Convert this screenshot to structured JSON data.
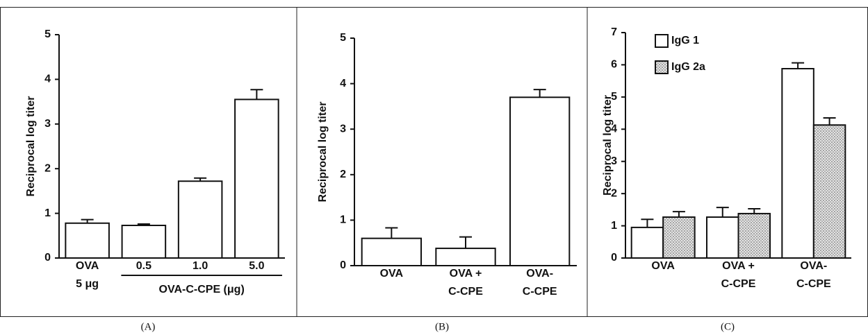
{
  "chart_data": [
    {
      "type": "bar",
      "panel_label": "(A)",
      "ylabel": "Reciprocal log titer",
      "categories": [
        [
          "OVA",
          "5 μg"
        ],
        [
          "0.5"
        ],
        [
          "1.0"
        ],
        [
          "5.0"
        ]
      ],
      "group_label": "OVA-C-CPE (μg)",
      "values": [
        0.78,
        0.73,
        1.72,
        3.55
      ],
      "errors": [
        0.08,
        0.03,
        0.07,
        0.22
      ],
      "color": "#ffffff",
      "ylim": [
        0,
        5
      ],
      "yticks": [
        0,
        1,
        2,
        3,
        4,
        5
      ]
    },
    {
      "type": "bar",
      "panel_label": "(B)",
      "ylabel": "Reciprocal log titer",
      "categories": [
        [
          "OVA"
        ],
        [
          "OVA +",
          "C-CPE"
        ],
        [
          "OVA-",
          "C-CPE"
        ]
      ],
      "values": [
        0.6,
        0.38,
        3.7
      ],
      "errors": [
        0.23,
        0.25,
        0.17
      ],
      "color": "#ffffff",
      "ylim": [
        0,
        5
      ],
      "yticks": [
        0,
        1,
        2,
        3,
        4,
        5
      ]
    },
    {
      "type": "grouped_bar",
      "panel_label": "(C)",
      "ylabel": "Reciprocal log titer",
      "categories": [
        [
          "OVA"
        ],
        [
          "OVA +",
          "C-CPE"
        ],
        [
          "OVA-",
          "C-CPE"
        ]
      ],
      "series": [
        {
          "name": "IgG 1",
          "color": "#ffffff",
          "fill_pattern": "none",
          "values": [
            0.95,
            1.27,
            5.88
          ],
          "errors": [
            0.25,
            0.3,
            0.18
          ]
        },
        {
          "name": "IgG 2a",
          "color": "#d0d0d0",
          "fill_pattern": "dots",
          "values": [
            1.27,
            1.38,
            4.13
          ],
          "errors": [
            0.17,
            0.15,
            0.22
          ]
        }
      ],
      "ylim": [
        0,
        7
      ],
      "yticks": [
        0,
        1,
        2,
        3,
        4,
        5,
        6,
        7
      ],
      "legend": "upper left"
    }
  ]
}
